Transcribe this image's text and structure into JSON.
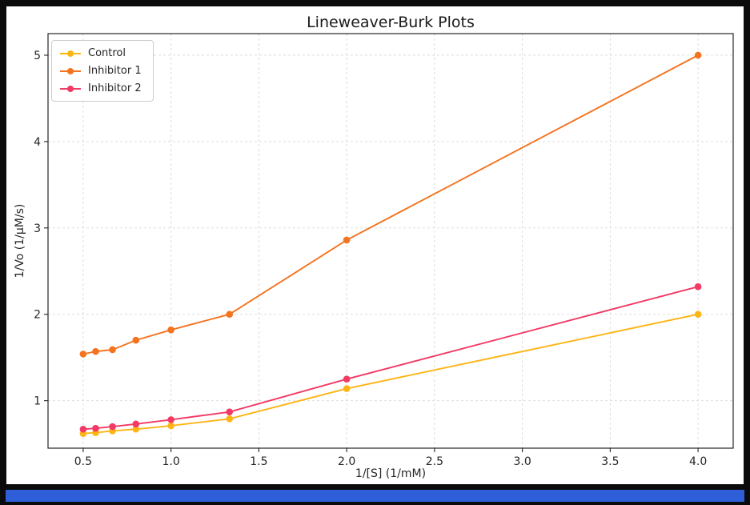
{
  "frame": {
    "background_color": "#0b0b0b",
    "taskbar_color": "#2e5fd8"
  },
  "chart_data": {
    "type": "line",
    "title": "Lineweaver-Burk Plots",
    "xlabel": "1/[S] (1/mM)",
    "ylabel": "1/Vo (1/μM/s)",
    "grid": true,
    "grid_style": "dashed",
    "legend_position": "upper left",
    "xlim": [
      0.3,
      4.2
    ],
    "ylim": [
      0.45,
      5.25
    ],
    "x_ticks": [
      0.5,
      1.0,
      1.5,
      2.0,
      2.5,
      3.0,
      3.5,
      4.0
    ],
    "x_tick_labels": [
      "0.5",
      "1.0",
      "1.5",
      "2.0",
      "2.5",
      "3.0",
      "3.5",
      "4.0"
    ],
    "y_ticks": [
      1,
      2,
      3,
      4,
      5
    ],
    "y_tick_labels": [
      "1",
      "2",
      "3",
      "4",
      "5"
    ],
    "x": [
      0.5,
      0.571,
      0.667,
      0.8,
      1.0,
      1.333,
      2.0,
      4.0
    ],
    "series": [
      {
        "name": "Control",
        "color": "#FDB515",
        "values": [
          0.62,
          0.63,
          0.65,
          0.67,
          0.71,
          0.79,
          1.14,
          2.0
        ]
      },
      {
        "name": "Inhibitor 1",
        "color": "#F4731E",
        "values": [
          1.54,
          1.57,
          1.59,
          1.7,
          1.82,
          2.0,
          2.86,
          5.0
        ]
      },
      {
        "name": "Inhibitor 2",
        "color": "#F23A65",
        "values": [
          0.67,
          0.68,
          0.7,
          0.73,
          0.78,
          0.87,
          1.25,
          2.32
        ]
      }
    ]
  }
}
